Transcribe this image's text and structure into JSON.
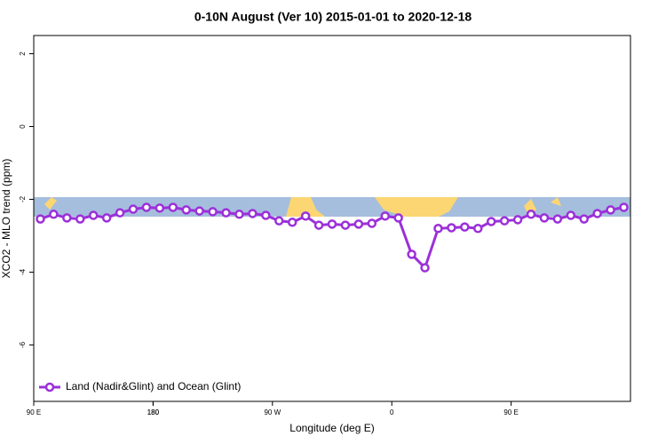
{
  "chart_data": {
    "type": "line",
    "title": "0-10N August (Ver 10)   2015-01-01 to 2020-12-18",
    "x_label": "Longitude (deg E)",
    "y_label": "XCO2 - MLO trend (ppm)",
    "x": [
      95,
      105,
      115,
      125,
      135,
      145,
      155,
      165,
      175,
      185,
      195,
      205,
      215,
      225,
      235,
      245,
      255,
      265,
      275,
      285,
      295,
      305,
      315,
      325,
      335,
      345,
      355,
      365,
      375,
      385,
      395,
      405,
      415,
      425,
      435,
      445,
      455,
      465,
      475,
      485,
      495,
      505,
      515,
      525,
      535
    ],
    "series": [
      {
        "name": "Land (Nadir&Glint) and Ocean (Glint)",
        "color": "#9b30d9",
        "values": [
          -2.54,
          -2.41,
          -2.51,
          -2.54,
          -2.44,
          -2.51,
          -2.37,
          -2.27,
          -2.22,
          -2.24,
          -2.22,
          -2.29,
          -2.32,
          -2.34,
          -2.37,
          -2.41,
          -2.39,
          -2.44,
          -2.59,
          -2.63,
          -2.46,
          -2.71,
          -2.68,
          -2.71,
          -2.68,
          -2.66,
          -2.46,
          -2.51,
          -3.51,
          -3.88,
          -2.8,
          -2.78,
          -2.76,
          -2.8,
          -2.61,
          -2.59,
          -2.56,
          -2.41,
          -2.51,
          -2.54,
          -2.44,
          -2.54,
          -2.39,
          -2.29,
          -2.22
        ]
      }
    ],
    "xlim": [
      90,
      540
    ],
    "xticks": [
      {
        "value": 90,
        "label": "90 E"
      },
      180,
      {
        "value": 270,
        "label": "90 W"
      },
      {
        "value": 360,
        "label": "0"
      },
      {
        "value": 450,
        "label": "90 E"
      },
      180.0001
    ],
    "ylim": [
      -7.55,
      2.5
    ],
    "yticks": [
      2,
      0,
      -2,
      -4,
      -6
    ],
    "legend": "bottom-left",
    "grid": false
  }
}
